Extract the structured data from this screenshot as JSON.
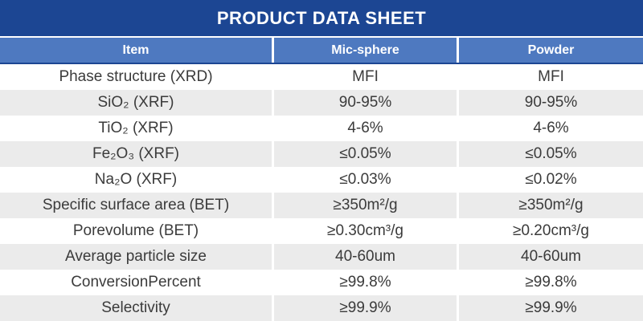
{
  "title": "PRODUCT DATA SHEET",
  "colors": {
    "title_bar": "#1C4693",
    "header_row": "#4E79C0",
    "alt_row": "#EBEBEB",
    "header_text": "#FFFFFF",
    "body_text": "#3B3B3B"
  },
  "table": {
    "columns": [
      "Item",
      "Mic-sphere",
      "Powder"
    ],
    "rows": [
      [
        "Phase structure (XRD)",
        "MFI",
        "MFI"
      ],
      [
        "SiO₂ (XRF)",
        "90-95%",
        "90-95%"
      ],
      [
        "TiO₂ (XRF)",
        "4-6%",
        "4-6%"
      ],
      [
        "Fe₂O₃ (XRF)",
        "≤0.05%",
        "≤0.05%"
      ],
      [
        "Na₂O (XRF)",
        "≤0.03%",
        "≤0.02%"
      ],
      [
        "Specific surface area (BET)",
        "≥350m²/g",
        "≥350m²/g"
      ],
      [
        "Porevolume (BET)",
        "≥0.30cm³/g",
        "≥0.20cm³/g"
      ],
      [
        "Average particle size",
        "40-60um",
        "40-60um"
      ],
      [
        "ConversionPercent",
        "≥99.8%",
        "≥99.8%"
      ],
      [
        "Selectivity",
        "≥99.9%",
        "≥99.9%"
      ]
    ]
  }
}
